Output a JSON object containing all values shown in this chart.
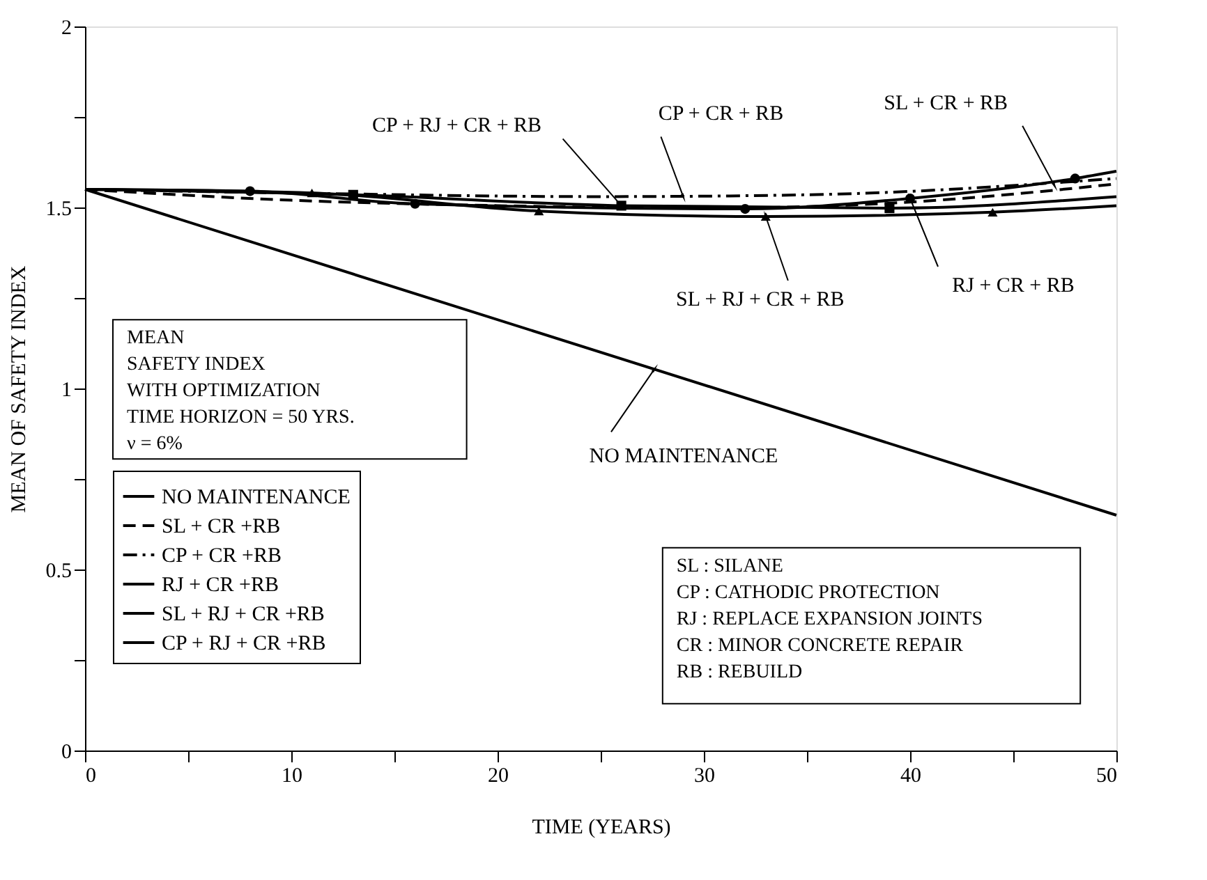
{
  "chart_data": {
    "type": "line",
    "xlabel": "TIME (YEARS)",
    "ylabel": "MEAN OF SAFETY INDEX",
    "xlim": [
      0,
      50
    ],
    "ylim": [
      0,
      2
    ],
    "xticks": [
      0,
      {
        "value": 5,
        "label": null
      },
      10,
      {
        "value": 15,
        "label": null
      },
      20,
      {
        "value": 25,
        "label": null
      },
      30,
      {
        "value": 35,
        "label": null
      },
      40,
      {
        "value": 45,
        "label": null
      },
      50
    ],
    "yticks": [
      0,
      {
        "value": 0.25,
        "label": null
      },
      0.5,
      {
        "value": 0.75,
        "label": null
      },
      1,
      {
        "value": 1.25,
        "label": null
      },
      1.5,
      {
        "value": 1.75,
        "label": null
      },
      2
    ],
    "grid": false,
    "legend": "bottom left",
    "series": [
      {
        "name": "NO MAINTENANCE",
        "color": "#000000",
        "line_style": "solid",
        "marker": "none",
        "x": [
          0,
          50
        ],
        "values": [
          1.55,
          0.65
        ]
      },
      {
        "name": "SL + CR +RB",
        "color": "#000000",
        "line_style": "dashed",
        "marker": "none",
        "x": [
          0,
          10,
          20,
          30,
          40,
          50
        ],
        "values": [
          1.55,
          1.52,
          1.505,
          1.498,
          1.515,
          1.565
        ]
      },
      {
        "name": "CP + CR +RB",
        "color": "#000000",
        "line_style": "dotted",
        "marker": "none",
        "x": [
          0,
          10,
          25,
          35,
          50
        ],
        "values": [
          1.55,
          1.54,
          1.53,
          1.535,
          1.58
        ]
      },
      {
        "name": "RJ + CR +RB",
        "color": "#000000",
        "line_style": "solid",
        "marker": "circle",
        "x": [
          0,
          8,
          16,
          32,
          40,
          48,
          50
        ],
        "values": [
          1.55,
          1.545,
          1.51,
          1.496,
          1.525,
          1.58,
          1.6
        ]
      },
      {
        "name": "SL + RJ + CR +RB",
        "color": "#000000",
        "line_style": "solid",
        "marker": "triangle",
        "x": [
          0,
          11,
          22,
          33,
          44,
          50
        ],
        "values": [
          1.55,
          1.54,
          1.49,
          1.475,
          1.487,
          1.505
        ]
      },
      {
        "name": "CP + RJ + CR +RB",
        "color": "#000000",
        "line_style": "solid",
        "marker": "square",
        "x": [
          0,
          13,
          26,
          39,
          50
        ],
        "values": [
          1.55,
          1.535,
          1.505,
          1.498,
          1.53
        ]
      }
    ],
    "annotations": [
      {
        "text": "CP +  RJ + CR + RB",
        "x": 26,
        "y": 1.505
      },
      {
        "text": "CP + CR + RB",
        "x": 29,
        "y": 1.53
      },
      {
        "text": "SL + CR + RB",
        "x": 47,
        "y": 1.56
      },
      {
        "text": "SL + RJ + CR + RB",
        "x": 33,
        "y": 1.475
      },
      {
        "text": "RJ + CR + RB",
        "x": 40,
        "y": 1.525
      },
      {
        "text": "NO MAINTENANCE",
        "x": 27.6,
        "y": 1.053
      },
      "MEAN\nSAFETY INDEX\nWITH OPTIMIZATION\nTIME HORIZON = 50 YRS.\nν = 6%",
      "SL : SILANE\nCP : CATHODIC PROTECTION\nRJ : REPLACE EXPANSION JOINTS\nCR : MINOR CONCRETE REPAIR\nRB : REBUILD"
    ]
  }
}
